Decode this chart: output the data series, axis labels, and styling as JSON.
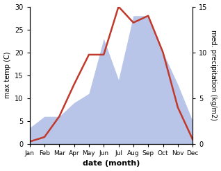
{
  "months": [
    "Jan",
    "Feb",
    "Mar",
    "Apr",
    "May",
    "Jun",
    "Jul",
    "Aug",
    "Sep",
    "Oct",
    "Nov",
    "Dec"
  ],
  "temperature": [
    0.5,
    1.5,
    6.0,
    13.0,
    19.5,
    19.5,
    30.0,
    26.5,
    28.0,
    20.0,
    8.0,
    1.0
  ],
  "precipitation_left_scale": [
    3.5,
    6.0,
    6.0,
    9.0,
    11.0,
    23.0,
    14.0,
    28.0,
    28.0,
    20.0,
    13.0,
    5.0
  ],
  "temp_color": "#c0392b",
  "precip_fill_color": "#b8c4e8",
  "left_ylim": [
    0,
    30
  ],
  "right_ylim": [
    0,
    15
  ],
  "ylabel_left": "max temp (C)",
  "ylabel_right": "med. precipitation (kg/m2)",
  "xlabel": "date (month)",
  "left_yticks": [
    0,
    5,
    10,
    15,
    20,
    25,
    30
  ],
  "right_yticks": [
    0,
    5,
    10,
    15
  ],
  "right_ytick_labels": [
    "0",
    "5",
    "10",
    "15"
  ]
}
